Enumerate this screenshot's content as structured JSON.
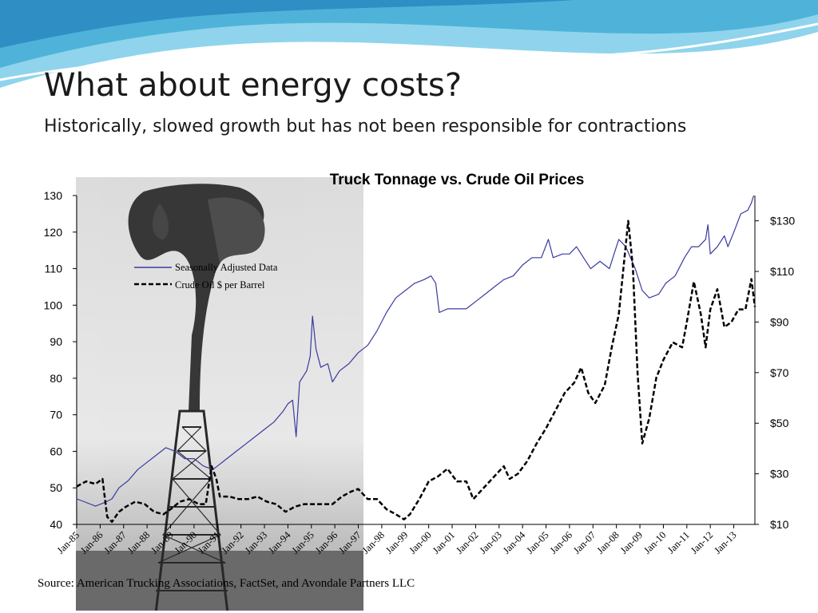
{
  "slide": {
    "title": "What about energy costs?",
    "subtitle": "Historically, slowed growth but has not been responsible for contractions",
    "source": "Source: American Trucking Associations, FactSet, and Avondale Partners LLC",
    "accent_color": "#6fc6e6"
  },
  "chart_data": {
    "type": "line",
    "title": "Truck Tonnage vs. Crude Oil Prices",
    "legend_position": "upper-left",
    "x_tick_labels": [
      "Jan-85",
      "Jan-86",
      "Jan-87",
      "Jan-88",
      "Jan-89",
      "Jan-90",
      "Jan-91",
      "Jan-92",
      "Jan-93",
      "Jan-94",
      "Jan-95",
      "Jan-96",
      "Jan-97",
      "Jan-98",
      "Jan-99",
      "Jan-00",
      "Jan-01",
      "Jan-02",
      "Jan-03",
      "Jan-04",
      "Jan-05",
      "Jan-06",
      "Jan-07",
      "Jan-08",
      "Jan-09",
      "Jan-10",
      "Jan-11",
      "Jan-12",
      "Jan-13"
    ],
    "x_range": [
      1985.0,
      2013.9
    ],
    "y_left": {
      "ticks": [
        40,
        50,
        60,
        70,
        80,
        90,
        100,
        110,
        120,
        130
      ],
      "range": [
        40,
        130
      ]
    },
    "y_right": {
      "ticks": [
        "$10",
        "$30",
        "$50",
        "$70",
        "$90",
        "$110",
        "$130"
      ],
      "values": [
        10,
        30,
        50,
        70,
        90,
        110,
        130
      ],
      "range": [
        10,
        140
      ]
    },
    "grid": false,
    "series": [
      {
        "name": "Seasonally Adjusted Data",
        "axis": "left",
        "style": "solid",
        "color": "#3a3aa0",
        "points": [
          [
            1985.0,
            47
          ],
          [
            1985.4,
            46
          ],
          [
            1985.8,
            45
          ],
          [
            1986.2,
            46
          ],
          [
            1986.5,
            47
          ],
          [
            1986.8,
            50
          ],
          [
            1987.2,
            52
          ],
          [
            1987.6,
            55
          ],
          [
            1988.0,
            57
          ],
          [
            1988.4,
            59
          ],
          [
            1988.8,
            61
          ],
          [
            1989.2,
            60
          ],
          [
            1989.6,
            58
          ],
          [
            1990.0,
            58
          ],
          [
            1990.4,
            56
          ],
          [
            1990.8,
            55
          ],
          [
            1991.0,
            56
          ],
          [
            1991.4,
            58
          ],
          [
            1991.8,
            60
          ],
          [
            1992.2,
            62
          ],
          [
            1992.6,
            64
          ],
          [
            1993.0,
            66
          ],
          [
            1993.4,
            68
          ],
          [
            1993.8,
            71
          ],
          [
            1994.0,
            73
          ],
          [
            1994.2,
            74
          ],
          [
            1994.35,
            64
          ],
          [
            1994.5,
            79
          ],
          [
            1994.8,
            82
          ],
          [
            1994.95,
            86
          ],
          [
            1995.05,
            97
          ],
          [
            1995.2,
            88
          ],
          [
            1995.4,
            83
          ],
          [
            1995.7,
            84
          ],
          [
            1995.9,
            79
          ],
          [
            1996.2,
            82
          ],
          [
            1996.6,
            84
          ],
          [
            1997.0,
            87
          ],
          [
            1997.4,
            89
          ],
          [
            1997.8,
            93
          ],
          [
            1998.2,
            98
          ],
          [
            1998.6,
            102
          ],
          [
            1999.0,
            104
          ],
          [
            1999.4,
            106
          ],
          [
            1999.8,
            107
          ],
          [
            2000.1,
            108
          ],
          [
            2000.3,
            106
          ],
          [
            2000.45,
            98
          ],
          [
            2000.8,
            99
          ],
          [
            2001.2,
            99
          ],
          [
            2001.6,
            99
          ],
          [
            2002.0,
            101
          ],
          [
            2002.4,
            103
          ],
          [
            2002.8,
            105
          ],
          [
            2003.2,
            107
          ],
          [
            2003.6,
            108
          ],
          [
            2004.0,
            111
          ],
          [
            2004.4,
            113
          ],
          [
            2004.8,
            113
          ],
          [
            2005.1,
            118
          ],
          [
            2005.3,
            113
          ],
          [
            2005.7,
            114
          ],
          [
            2006.0,
            114
          ],
          [
            2006.3,
            116
          ],
          [
            2006.6,
            113
          ],
          [
            2006.9,
            110
          ],
          [
            2007.3,
            112
          ],
          [
            2007.7,
            110
          ],
          [
            2007.9,
            114
          ],
          [
            2008.1,
            118
          ],
          [
            2008.4,
            116
          ],
          [
            2008.8,
            110
          ],
          [
            2009.1,
            104
          ],
          [
            2009.4,
            102
          ],
          [
            2009.8,
            103
          ],
          [
            2010.1,
            106
          ],
          [
            2010.5,
            108
          ],
          [
            2010.9,
            113
          ],
          [
            2011.2,
            116
          ],
          [
            2011.5,
            116
          ],
          [
            2011.8,
            118
          ],
          [
            2011.9,
            122
          ],
          [
            2012.0,
            114
          ],
          [
            2012.3,
            116
          ],
          [
            2012.6,
            119
          ],
          [
            2012.75,
            116
          ],
          [
            2013.0,
            120
          ],
          [
            2013.3,
            125
          ],
          [
            2013.6,
            126
          ],
          [
            2013.75,
            128
          ],
          [
            2013.85,
            130
          ]
        ]
      },
      {
        "name": "Crude Oil $ per Barrel",
        "axis": "right",
        "style": "dashed",
        "color": "#000000",
        "points": [
          [
            1985.0,
            25
          ],
          [
            1985.4,
            27
          ],
          [
            1985.8,
            26
          ],
          [
            1986.1,
            28
          ],
          [
            1986.3,
            13
          ],
          [
            1986.5,
            11
          ],
          [
            1986.8,
            15
          ],
          [
            1987.1,
            17
          ],
          [
            1987.5,
            19
          ],
          [
            1987.9,
            18
          ],
          [
            1988.3,
            15
          ],
          [
            1988.7,
            14
          ],
          [
            1989.0,
            16
          ],
          [
            1989.4,
            19
          ],
          [
            1989.8,
            20
          ],
          [
            1990.2,
            18
          ],
          [
            1990.5,
            18
          ],
          [
            1990.75,
            33
          ],
          [
            1990.95,
            28
          ],
          [
            1991.1,
            21
          ],
          [
            1991.5,
            21
          ],
          [
            1991.9,
            20
          ],
          [
            1992.3,
            20
          ],
          [
            1992.7,
            21
          ],
          [
            1993.1,
            19
          ],
          [
            1993.5,
            18
          ],
          [
            1993.9,
            15
          ],
          [
            1994.3,
            17
          ],
          [
            1994.7,
            18
          ],
          [
            1995.1,
            18
          ],
          [
            1995.5,
            18
          ],
          [
            1995.9,
            18
          ],
          [
            1996.3,
            21
          ],
          [
            1996.7,
            23
          ],
          [
            1997.0,
            24
          ],
          [
            1997.4,
            20
          ],
          [
            1997.8,
            20
          ],
          [
            1998.2,
            16
          ],
          [
            1998.6,
            14
          ],
          [
            1998.95,
            12
          ],
          [
            1999.2,
            14
          ],
          [
            1999.6,
            20
          ],
          [
            2000.0,
            27
          ],
          [
            2000.4,
            29
          ],
          [
            2000.8,
            32
          ],
          [
            2001.2,
            27
          ],
          [
            2001.6,
            27
          ],
          [
            2001.9,
            20
          ],
          [
            2002.2,
            23
          ],
          [
            2002.6,
            27
          ],
          [
            2003.0,
            31
          ],
          [
            2003.2,
            33
          ],
          [
            2003.45,
            28
          ],
          [
            2003.8,
            30
          ],
          [
            2004.2,
            35
          ],
          [
            2004.6,
            42
          ],
          [
            2005.0,
            48
          ],
          [
            2005.4,
            55
          ],
          [
            2005.8,
            62
          ],
          [
            2006.2,
            66
          ],
          [
            2006.5,
            72
          ],
          [
            2006.8,
            62
          ],
          [
            2007.1,
            58
          ],
          [
            2007.5,
            65
          ],
          [
            2007.8,
            80
          ],
          [
            2008.1,
            93
          ],
          [
            2008.5,
            130
          ],
          [
            2008.7,
            112
          ],
          [
            2008.9,
            70
          ],
          [
            2009.1,
            42
          ],
          [
            2009.4,
            52
          ],
          [
            2009.7,
            68
          ],
          [
            2010.0,
            75
          ],
          [
            2010.4,
            82
          ],
          [
            2010.8,
            80
          ],
          [
            2011.0,
            90
          ],
          [
            2011.3,
            106
          ],
          [
            2011.6,
            93
          ],
          [
            2011.8,
            80
          ],
          [
            2012.0,
            95
          ],
          [
            2012.3,
            103
          ],
          [
            2012.6,
            88
          ],
          [
            2012.9,
            90
          ],
          [
            2013.2,
            95
          ],
          [
            2013.5,
            95
          ],
          [
            2013.75,
            107
          ],
          [
            2013.9,
            96
          ]
        ]
      }
    ]
  }
}
